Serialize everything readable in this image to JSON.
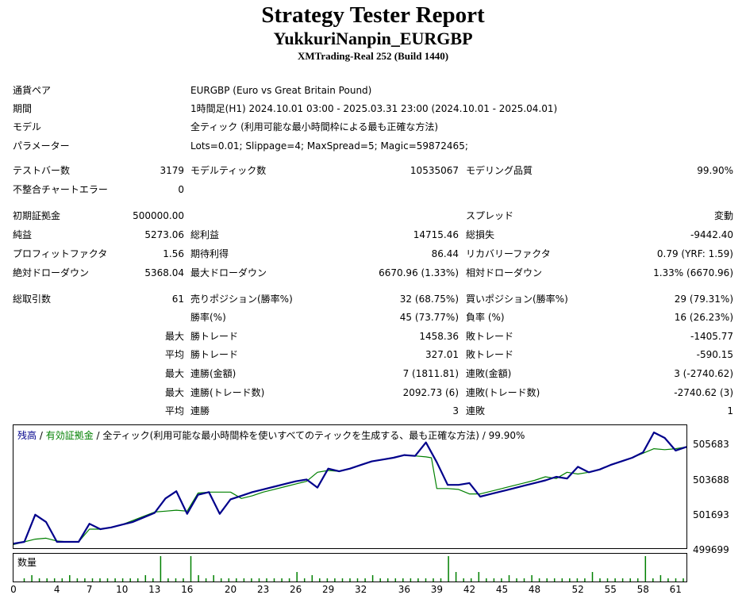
{
  "report": {
    "title": "Strategy Tester Report",
    "ea_name": "YukkuriNanpin_EURGBP",
    "server": "XMTrading-Real 252 (Build 1440)"
  },
  "settings": [
    {
      "label": "通貨ペア",
      "value": "EURGBP (Euro vs Great Britain Pound)"
    },
    {
      "label": "期間",
      "value": "1時間足(H1) 2024.10.01 03:00 - 2025.03.31 23:00 (2024.10.01 - 2025.04.01)"
    },
    {
      "label": "モデル",
      "value": "全ティック (利用可能な最小時間枠による最も正確な方法)"
    },
    {
      "label": "パラメーター",
      "value": "Lots=0.01; Slippage=4; MaxSpread=5; Magic=59872465;"
    }
  ],
  "stats": {
    "bars_label": "テストバー数",
    "bars": "3179",
    "ticks_label": "モデルティック数",
    "ticks": "10535067",
    "quality_label": "モデリング品質",
    "quality": "99.90%",
    "errors_label": "不整合チャートエラー",
    "errors": "0",
    "deposit_label": "初期証拠金",
    "deposit": "500000.00",
    "spread_label": "スプレッド",
    "spread": "変動",
    "net_label": "純益",
    "net": "5273.06",
    "gross_profit_label": "総利益",
    "gross_profit": "14715.46",
    "gross_loss_label": "総損失",
    "gross_loss": "-9442.40",
    "pf_label": "プロフィットファクタ",
    "pf": "1.56",
    "expected_label": "期待利得",
    "expected": "86.44",
    "recovery_label": "リカバリーファクタ",
    "recovery": "0.79 (YRF: 1.59)",
    "abs_dd_label": "絶対ドローダウン",
    "abs_dd": "5368.04",
    "max_dd_label": "最大ドローダウン",
    "max_dd": "6670.96 (1.33%)",
    "rel_dd_label": "相対ドローダウン",
    "rel_dd": "1.33% (6670.96)",
    "trades_label": "総取引数",
    "trades": "61",
    "short_label": "売りポジション(勝率%)",
    "short": "32 (68.75%)",
    "long_label": "買いポジション(勝率%)",
    "long": "29 (79.31%)",
    "winrate_label": "勝率(%)",
    "winrate": "45 (73.77%)",
    "lossrate_label": "負率 (%)",
    "lossrate": "16 (26.23%)",
    "max_word": "最大",
    "avg_word": "平均",
    "largest_win_label": "勝トレード",
    "largest_win": "1458.36",
    "largest_loss_label": "敗トレード",
    "largest_loss": "-1405.77",
    "avg_win_label": "勝トレード",
    "avg_win": "327.01",
    "avg_loss_label": "敗トレード",
    "avg_loss": "-590.15",
    "consec_wins_money_label": "連勝(金額)",
    "consec_wins_money": "7 (1811.81)",
    "consec_losses_money_label": "連敗(金額)",
    "consec_losses_money": "3 (-2740.62)",
    "consec_profit_label": "連勝(トレード数)",
    "consec_profit": "2092.73 (6)",
    "consec_loss_label": "連敗(トレード数)",
    "consec_loss": "-2740.62 (3)",
    "avg_consec_wins_label": "連勝",
    "avg_consec_wins": "3",
    "avg_consec_losses_label": "連敗",
    "avg_consec_losses": "1"
  },
  "chart_legend": {
    "balance": "残高",
    "sep1": " / ",
    "equity": "有効証拠金",
    "sep2": " / ",
    "rest": "全ティック(利用可能な最小時間枠を使いすべてのティックを生成する、最も正確な方法) / 99.90%"
  },
  "volume_label": "数量",
  "colors": {
    "balance": "#00008b",
    "equity": "#008000"
  },
  "chart_data": {
    "type": "line",
    "y_ticks": [
      "505683",
      "503688",
      "501693",
      "499699"
    ],
    "x_ticks": [
      "0",
      "4",
      "7",
      "10",
      "13",
      "16",
      "20",
      "23",
      "26",
      "29",
      "32",
      "36",
      "39",
      "42",
      "45",
      "48",
      "52",
      "55",
      "58",
      "61"
    ],
    "ylim": [
      499699,
      506500
    ],
    "xlim": [
      0,
      62
    ],
    "series": [
      {
        "name": "残高",
        "x": [
          0,
          1,
          2,
          3,
          4,
          5,
          6,
          7,
          8,
          9,
          10,
          11,
          12,
          13,
          14,
          15,
          16,
          17,
          18,
          19,
          20,
          21,
          22,
          23,
          24,
          25,
          26,
          27,
          28,
          29,
          30,
          31,
          32,
          33,
          34,
          35,
          36,
          37,
          38,
          39,
          40,
          41,
          42,
          43,
          44,
          45,
          46,
          47,
          48,
          49,
          50,
          51,
          52,
          53,
          54,
          55,
          56,
          57,
          58,
          59,
          60,
          61,
          62
        ],
        "y": [
          499950,
          500050,
          501550,
          501150,
          500050,
          500050,
          500050,
          501050,
          500750,
          500850,
          501000,
          501150,
          501400,
          501650,
          502450,
          502850,
          501600,
          502650,
          502800,
          501600,
          502400,
          502600,
          502800,
          502950,
          503100,
          503250,
          503400,
          503500,
          503050,
          504100,
          503950,
          504100,
          504300,
          504500,
          504600,
          504700,
          504850,
          504800,
          505550,
          504450,
          503200,
          503200,
          503300,
          502550,
          502700,
          502850,
          503000,
          503150,
          503300,
          503450,
          503650,
          503550,
          504200,
          503900,
          504050,
          504300,
          504500,
          504700,
          505000,
          506100,
          505800,
          505100,
          505300
        ]
      },
      {
        "name": "有効証拠金",
        "x": [
          0,
          2,
          3,
          4,
          5,
          6,
          7,
          8,
          9,
          10,
          13,
          14,
          15,
          16,
          17,
          18,
          19,
          20,
          21,
          22,
          23,
          24,
          25,
          26,
          27,
          28,
          29,
          30,
          31,
          32,
          33,
          34,
          35,
          36,
          37,
          38,
          38.5,
          39,
          40,
          41,
          42,
          43,
          44,
          45,
          46,
          47,
          48,
          49,
          50,
          51,
          52,
          53,
          54,
          55,
          56,
          57,
          58,
          59,
          60,
          61,
          62
        ],
        "y": [
          499900,
          500200,
          500250,
          500100,
          500050,
          500050,
          500750,
          500750,
          500850,
          501000,
          501700,
          501750,
          501800,
          501750,
          502750,
          502800,
          502800,
          502800,
          502450,
          502600,
          502800,
          502950,
          503100,
          503250,
          503400,
          503900,
          504000,
          503950,
          504100,
          504300,
          504500,
          504600,
          504700,
          504850,
          504800,
          504750,
          504700,
          503000,
          503000,
          502950,
          502700,
          502700,
          502850,
          503000,
          503150,
          503300,
          503450,
          503650,
          503550,
          503900,
          503800,
          503900,
          504050,
          504300,
          504500,
          504700,
          504950,
          505200,
          505150,
          505200,
          505300
        ]
      }
    ],
    "volume": [
      0,
      1,
      2,
      1,
      1,
      1,
      1,
      2,
      1,
      1,
      1,
      1,
      1,
      1,
      1,
      1,
      1,
      2,
      1,
      8,
      1,
      1,
      1,
      8,
      2,
      1,
      2,
      1,
      1,
      1,
      1,
      1,
      1,
      1,
      1,
      1,
      1,
      3,
      1,
      2,
      1,
      1,
      1,
      1,
      1,
      1,
      1,
      2,
      1,
      1,
      1,
      1,
      1,
      1,
      1,
      1,
      1,
      8,
      3,
      1,
      1,
      3,
      1,
      1,
      1,
      2,
      1,
      1,
      2,
      1,
      1,
      1,
      1,
      1,
      1,
      1,
      3,
      1,
      1,
      1,
      1,
      1,
      1,
      8,
      1,
      2,
      1,
      1,
      1
    ]
  }
}
